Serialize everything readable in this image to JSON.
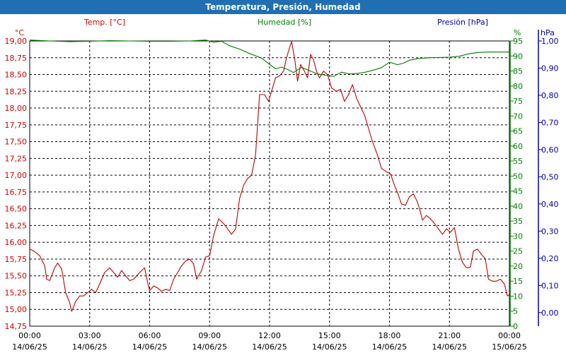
{
  "chart_data": {
    "type": "line",
    "title": "Temperatura, Presión, Humedad",
    "axes": {
      "temp": {
        "label": "Temp. [°C]",
        "unit": "°C",
        "range": [
          14.75,
          19.0
        ],
        "ticks": [
          "14,75",
          "15,00",
          "15,25",
          "15,50",
          "15,75",
          "16,00",
          "16,25",
          "16,50",
          "16,75",
          "17,00",
          "17,25",
          "17,50",
          "17,75",
          "18,00",
          "18,25",
          "18,50",
          "18,75",
          "19,00"
        ],
        "color": "#cc0000"
      },
      "humidity": {
        "label": "Humedad [%]",
        "unit": "%",
        "range": [
          0,
          95
        ],
        "ticks": [
          "0",
          "5",
          "10",
          "15",
          "20",
          "25",
          "30",
          "35",
          "40",
          "45",
          "50",
          "55",
          "60",
          "65",
          "70",
          "75",
          "80",
          "85",
          "90",
          "95"
        ],
        "color": "#008000"
      },
      "pressure": {
        "label": "Presión [hPa]",
        "unit": "hPa",
        "range": [
          -0.05,
          1.0
        ],
        "ticks": [
          "0,00",
          "0,10",
          "0,20",
          "0,30",
          "0,40",
          "0,50",
          "0,60",
          "0,70",
          "0,80",
          "0,90",
          "1,00"
        ],
        "color": "#0000aa"
      }
    },
    "x_ticks": [
      {
        "time": "00:00",
        "date": "14/06/25"
      },
      {
        "time": "03:00",
        "date": "14/06/25"
      },
      {
        "time": "06:00",
        "date": "14/06/25"
      },
      {
        "time": "09:00",
        "date": "14/06/25"
      },
      {
        "time": "12:00",
        "date": "14/06/25"
      },
      {
        "time": "15:00",
        "date": "14/06/25"
      },
      {
        "time": "18:00",
        "date": "14/06/25"
      },
      {
        "time": "21:00",
        "date": "14/06/25"
      },
      {
        "time": "00:00",
        "date": "15/06/25"
      }
    ],
    "x_range_hours": [
      0,
      24
    ],
    "grid": true,
    "series": [
      {
        "name": "Temp. [°C]",
        "axis": "temp",
        "color": "#bb0000",
        "points": [
          [
            0,
            15.9
          ],
          [
            0.2,
            15.87
          ],
          [
            0.5,
            15.8
          ],
          [
            0.75,
            15.65
          ],
          [
            0.85,
            15.45
          ],
          [
            1.0,
            15.43
          ],
          [
            1.25,
            15.62
          ],
          [
            1.4,
            15.69
          ],
          [
            1.6,
            15.6
          ],
          [
            1.8,
            15.25
          ],
          [
            2.0,
            15.1
          ],
          [
            2.1,
            14.97
          ],
          [
            2.3,
            15.12
          ],
          [
            2.5,
            15.2
          ],
          [
            2.7,
            15.2
          ],
          [
            2.9,
            15.25
          ],
          [
            3.1,
            15.3
          ],
          [
            3.3,
            15.25
          ],
          [
            3.5,
            15.38
          ],
          [
            3.75,
            15.55
          ],
          [
            4.0,
            15.62
          ],
          [
            4.2,
            15.55
          ],
          [
            4.4,
            15.48
          ],
          [
            4.6,
            15.58
          ],
          [
            4.8,
            15.5
          ],
          [
            5.0,
            15.43
          ],
          [
            5.2,
            15.45
          ],
          [
            5.5,
            15.55
          ],
          [
            5.75,
            15.62
          ],
          [
            5.9,
            15.4
          ],
          [
            6.0,
            15.28
          ],
          [
            6.2,
            15.35
          ],
          [
            6.4,
            15.32
          ],
          [
            6.6,
            15.27
          ],
          [
            6.8,
            15.3
          ],
          [
            7.0,
            15.28
          ],
          [
            7.2,
            15.45
          ],
          [
            7.4,
            15.55
          ],
          [
            7.6,
            15.65
          ],
          [
            7.8,
            15.72
          ],
          [
            8.0,
            15.75
          ],
          [
            8.2,
            15.68
          ],
          [
            8.35,
            15.45
          ],
          [
            8.6,
            15.58
          ],
          [
            8.8,
            15.78
          ],
          [
            9.0,
            15.8
          ],
          [
            9.2,
            16.1
          ],
          [
            9.45,
            16.35
          ],
          [
            9.7,
            16.28
          ],
          [
            9.9,
            16.2
          ],
          [
            10.1,
            16.12
          ],
          [
            10.3,
            16.2
          ],
          [
            10.5,
            16.65
          ],
          [
            10.7,
            16.85
          ],
          [
            10.9,
            16.95
          ],
          [
            11.1,
            17.0
          ],
          [
            11.3,
            17.3
          ],
          [
            11.5,
            18.2
          ],
          [
            11.75,
            18.2
          ],
          [
            11.95,
            18.1
          ],
          [
            12.1,
            18.25
          ],
          [
            12.3,
            18.45
          ],
          [
            12.5,
            18.48
          ],
          [
            12.7,
            18.55
          ],
          [
            12.85,
            18.75
          ],
          [
            13.0,
            18.9
          ],
          [
            13.1,
            18.99
          ],
          [
            13.25,
            18.75
          ],
          [
            13.4,
            18.4
          ],
          [
            13.55,
            18.65
          ],
          [
            13.75,
            18.55
          ],
          [
            13.9,
            18.45
          ],
          [
            14.05,
            18.8
          ],
          [
            14.2,
            18.72
          ],
          [
            14.35,
            18.55
          ],
          [
            14.5,
            18.45
          ],
          [
            14.7,
            18.55
          ],
          [
            14.9,
            18.5
          ],
          [
            15.1,
            18.3
          ],
          [
            15.35,
            18.25
          ],
          [
            15.55,
            18.28
          ],
          [
            15.75,
            18.1
          ],
          [
            15.95,
            18.2
          ],
          [
            16.15,
            18.35
          ],
          [
            16.35,
            18.15
          ],
          [
            16.55,
            18.02
          ],
          [
            16.75,
            17.9
          ],
          [
            16.95,
            17.7
          ],
          [
            17.15,
            17.5
          ],
          [
            17.4,
            17.3
          ],
          [
            17.6,
            17.1
          ],
          [
            17.85,
            17.05
          ],
          [
            18.05,
            17.02
          ],
          [
            18.25,
            16.85
          ],
          [
            18.45,
            16.7
          ],
          [
            18.6,
            16.57
          ],
          [
            18.8,
            16.55
          ],
          [
            19.0,
            16.68
          ],
          [
            19.2,
            16.72
          ],
          [
            19.4,
            16.6
          ],
          [
            19.55,
            16.45
          ],
          [
            19.65,
            16.33
          ],
          [
            19.85,
            16.4
          ],
          [
            20.05,
            16.35
          ],
          [
            20.25,
            16.28
          ],
          [
            20.45,
            16.2
          ],
          [
            20.65,
            16.12
          ],
          [
            20.85,
            16.2
          ],
          [
            21.05,
            16.15
          ],
          [
            21.25,
            16.22
          ],
          [
            21.45,
            15.9
          ],
          [
            21.65,
            15.7
          ],
          [
            21.85,
            15.62
          ],
          [
            22.05,
            15.63
          ],
          [
            22.2,
            15.87
          ],
          [
            22.4,
            15.9
          ],
          [
            22.6,
            15.82
          ],
          [
            22.8,
            15.75
          ],
          [
            22.95,
            15.45
          ],
          [
            23.15,
            15.42
          ],
          [
            23.35,
            15.42
          ],
          [
            23.55,
            15.45
          ],
          [
            23.75,
            15.38
          ],
          [
            23.9,
            15.2
          ],
          [
            24.0,
            15.22
          ]
        ]
      },
      {
        "name": "Humedad [%]",
        "axis": "humidity",
        "color": "#007a00",
        "points": [
          [
            0,
            95.3
          ],
          [
            1,
            95.0
          ],
          [
            2,
            94.8
          ],
          [
            3,
            94.9
          ],
          [
            4,
            95.1
          ],
          [
            5,
            95.0
          ],
          [
            6,
            94.9
          ],
          [
            7,
            94.9
          ],
          [
            8,
            95.0
          ],
          [
            8.8,
            95.3
          ],
          [
            9.2,
            94.6
          ],
          [
            9.6,
            94.9
          ],
          [
            10.0,
            93.4
          ],
          [
            10.5,
            92.3
          ],
          [
            11.0,
            90.8
          ],
          [
            11.6,
            89.3
          ],
          [
            12.0,
            87.2
          ],
          [
            12.3,
            85.7
          ],
          [
            12.6,
            86.3
          ],
          [
            12.9,
            85.5
          ],
          [
            13.2,
            84.5
          ],
          [
            13.6,
            86.2
          ],
          [
            14.0,
            85.1
          ],
          [
            14.4,
            84.0
          ],
          [
            14.8,
            83.6
          ],
          [
            15.2,
            83.2
          ],
          [
            15.6,
            84.6
          ],
          [
            16.0,
            84.0
          ],
          [
            16.4,
            84.2
          ],
          [
            16.8,
            84.6
          ],
          [
            17.2,
            85.3
          ],
          [
            17.6,
            86.1
          ],
          [
            18.0,
            87.9
          ],
          [
            18.4,
            87.1
          ],
          [
            18.7,
            87.6
          ],
          [
            19.0,
            88.6
          ],
          [
            19.5,
            89.2
          ],
          [
            20.0,
            89.4
          ],
          [
            20.5,
            89.5
          ],
          [
            21.0,
            89.6
          ],
          [
            21.5,
            89.9
          ],
          [
            22.0,
            90.8
          ],
          [
            22.5,
            91.2
          ],
          [
            23.0,
            91.3
          ],
          [
            23.5,
            91.3
          ],
          [
            24.0,
            91.3
          ]
        ]
      }
    ]
  }
}
